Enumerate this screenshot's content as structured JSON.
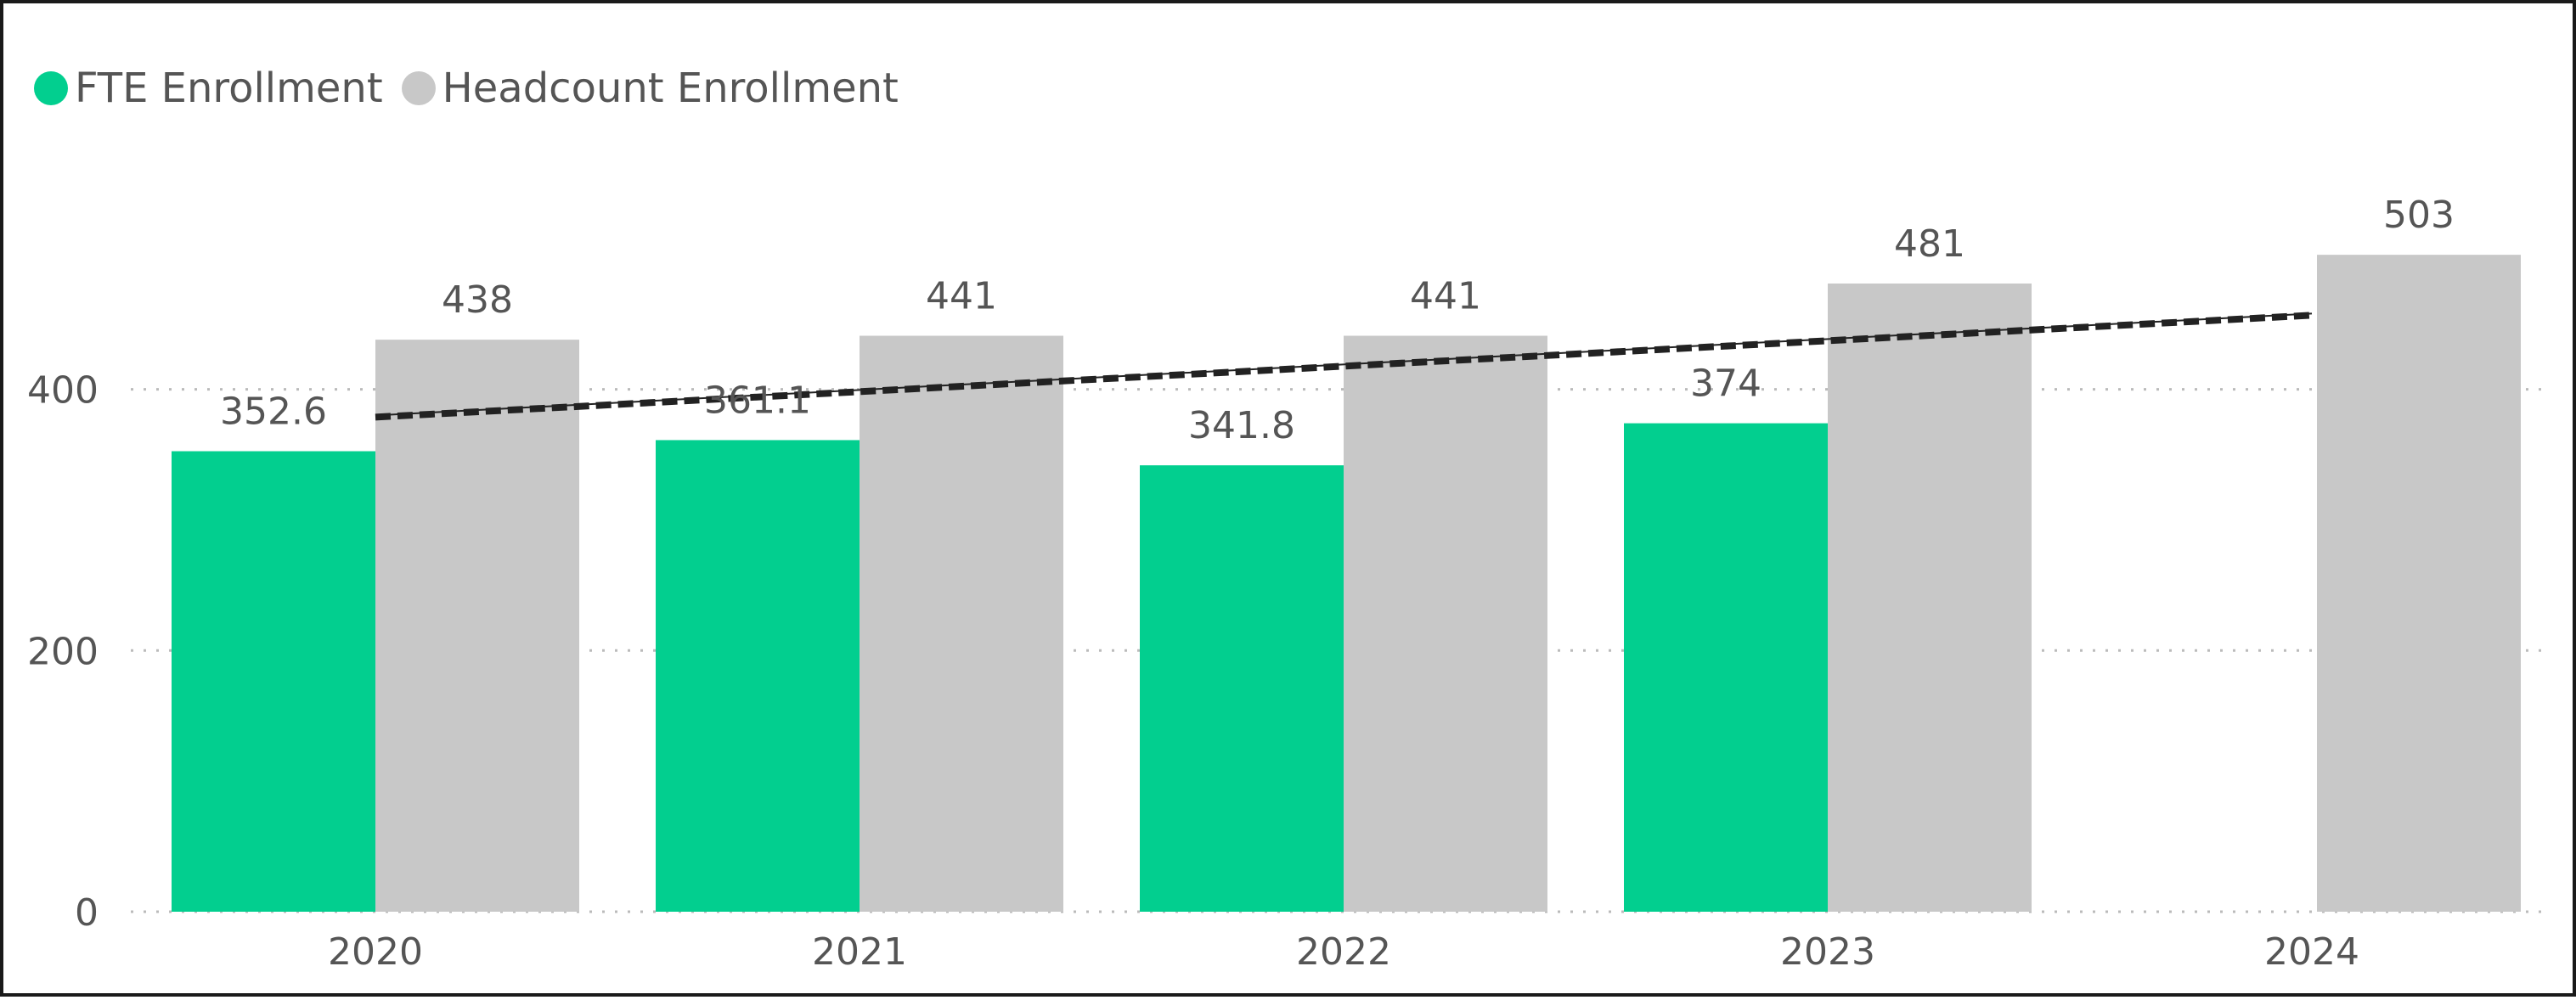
{
  "colors": {
    "fte": "#02CF8F",
    "headcount": "#C8C8C8",
    "trend": "#222222",
    "grid": "#BBBBBB",
    "text": "#555555"
  },
  "chart_data": {
    "type": "bar",
    "categories": [
      "2020",
      "2021",
      "2022",
      "2023",
      "2024"
    ],
    "series": [
      {
        "name": "FTE Enrollment",
        "values": [
          352.6,
          361.1,
          341.8,
          374,
          null
        ],
        "data_labels": [
          "352.6",
          "361.1",
          "341.8",
          "374",
          ""
        ]
      },
      {
        "name": "Headcount Enrollment",
        "values": [
          438,
          441,
          441,
          481,
          503
        ],
        "data_labels": [
          "438",
          "441",
          "441",
          "481",
          "503"
        ]
      }
    ],
    "trend_line": {
      "style": "dashed",
      "start": {
        "category": "2020",
        "value": 380
      },
      "end": {
        "category": "2024",
        "value": 458
      }
    },
    "y_ticks": [
      "0",
      "200",
      "400"
    ],
    "ylim": [
      0,
      520
    ],
    "grid": true,
    "legend_position": "top-left",
    "title": "",
    "xlabel": "",
    "ylabel": ""
  }
}
